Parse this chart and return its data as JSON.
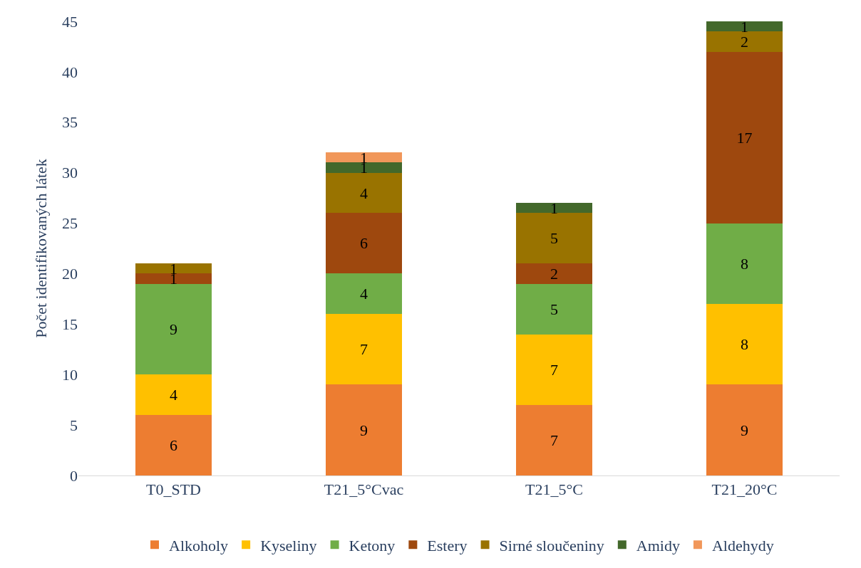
{
  "chart_data": {
    "type": "bar",
    "stacked": true,
    "ylabel": "Počet identifikovaných látek",
    "categories": [
      "T0_STD",
      "T21_5°Cvac",
      "T21_5°C",
      "T21_20°C"
    ],
    "series": [
      {
        "name": "Alkoholy",
        "color": "#ed7d31",
        "values": [
          6,
          9,
          7,
          9
        ]
      },
      {
        "name": "Kyseliny",
        "color": "#ffc000",
        "values": [
          4,
          7,
          7,
          8
        ]
      },
      {
        "name": "Ketony",
        "color": "#70ad47",
        "values": [
          9,
          4,
          5,
          8
        ]
      },
      {
        "name": "Estery",
        "color": "#9e480e",
        "values": [
          1,
          6,
          2,
          17
        ]
      },
      {
        "name": "Sirné sloučeniny",
        "color": "#997300",
        "values": [
          1,
          4,
          5,
          2
        ]
      },
      {
        "name": "Amidy",
        "color": "#43682b",
        "values": [
          null,
          1,
          1,
          1
        ]
      },
      {
        "name": "Aldehydy",
        "color": "#f1975a",
        "values": [
          null,
          1,
          null,
          null
        ]
      }
    ],
    "ylim": [
      0,
      45
    ],
    "yticks": [
      0,
      5,
      10,
      15,
      20,
      25,
      30,
      35,
      40,
      45
    ],
    "data_labels": true,
    "legend": "bottom"
  }
}
